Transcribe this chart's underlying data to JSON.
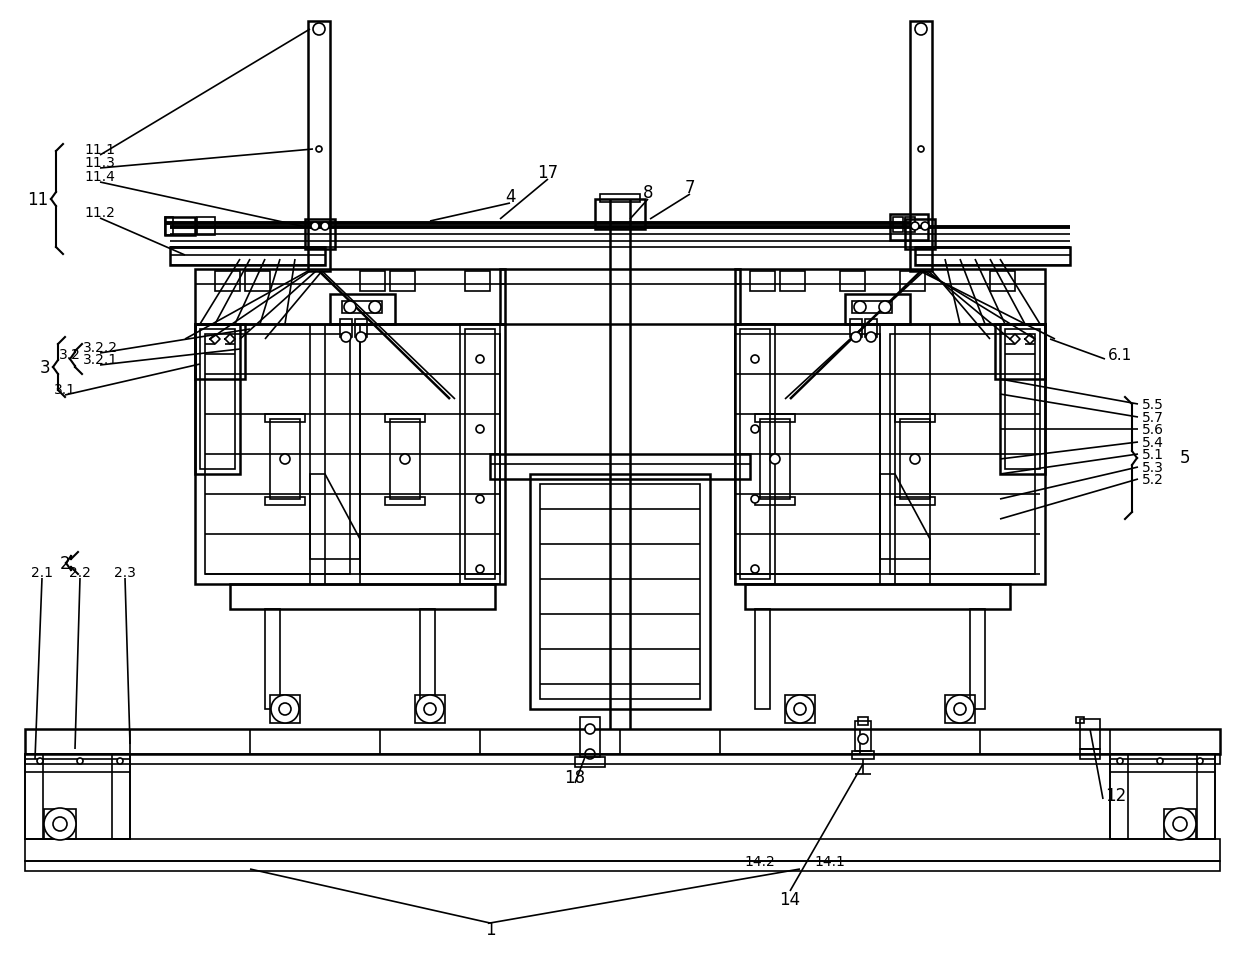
{
  "bg_color": "#ffffff",
  "lc": "#000000",
  "lw": 1.2,
  "tlw": 2.8,
  "mlw": 1.8
}
